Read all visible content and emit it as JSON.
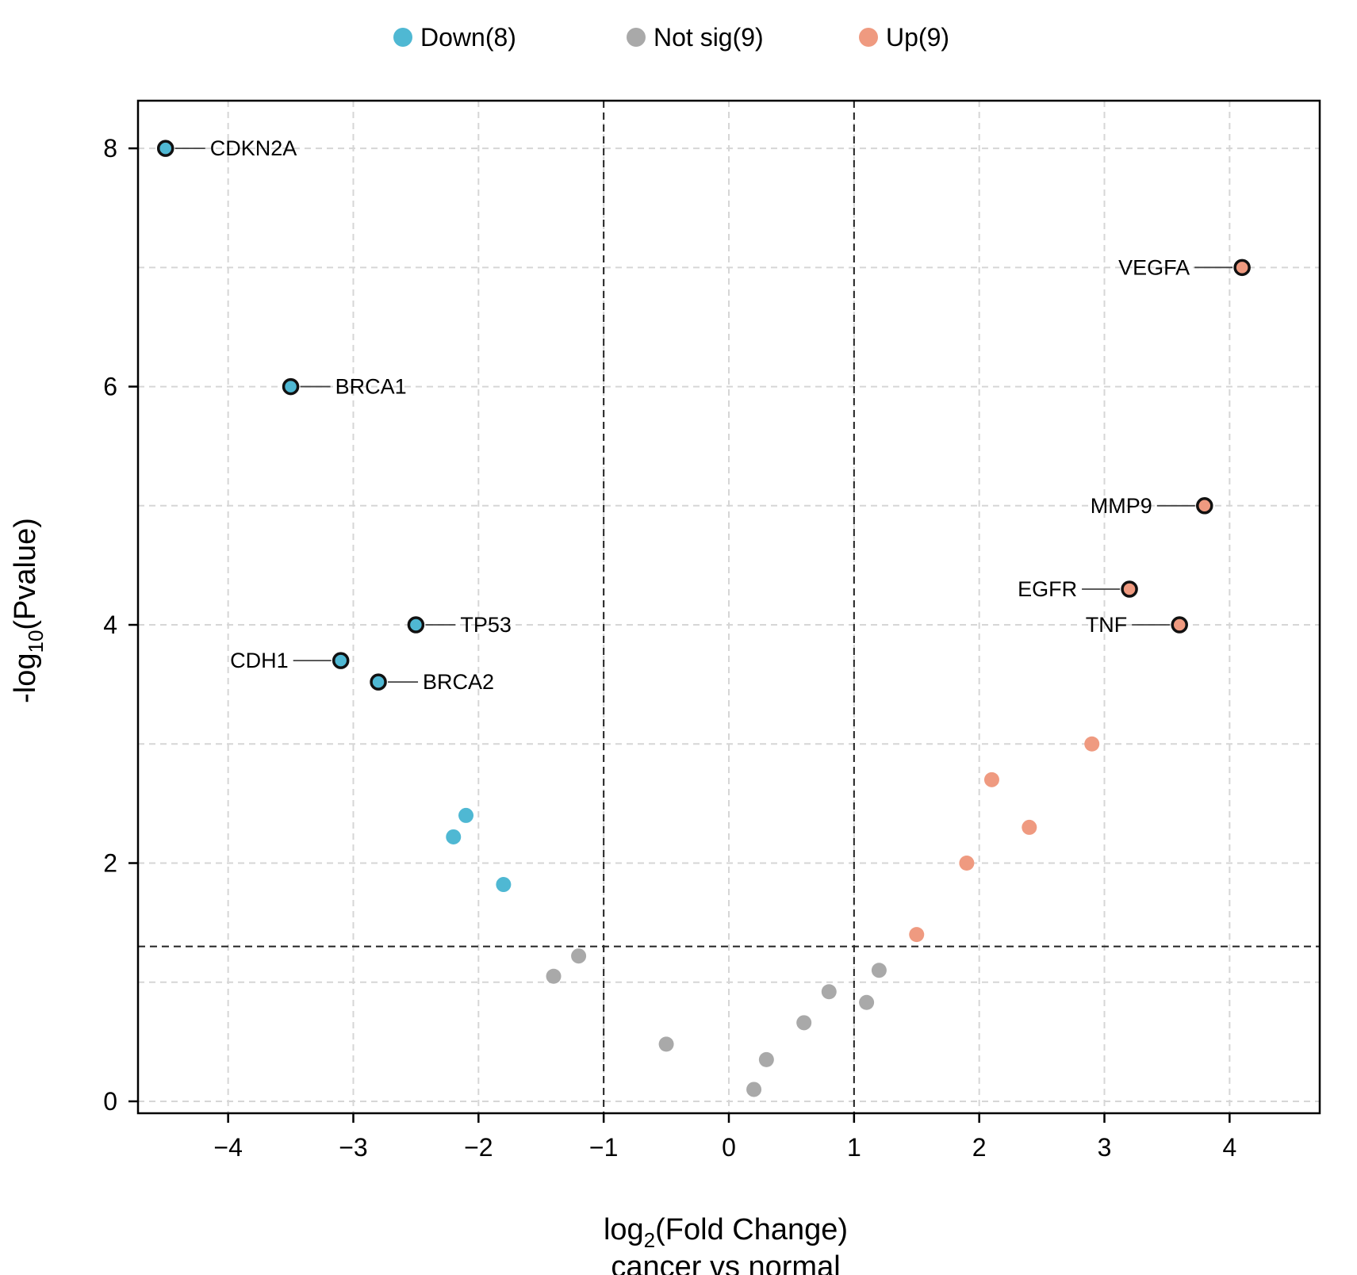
{
  "chart_data": {
    "type": "scatter",
    "title": "",
    "xlabel_main": "log",
    "xlabel_sub": "2",
    "xlabel_rest": "(Fold Change)",
    "xlabel_line2": "cancer vs normal",
    "ylabel_main": "-log",
    "ylabel_sub": "10",
    "ylabel_rest": "(Pvalue)",
    "xlim": [
      -4.72,
      4.72
    ],
    "ylim": [
      -0.1,
      8.4
    ],
    "xticks": [
      -4,
      -3,
      -2,
      -1,
      0,
      1,
      2,
      3,
      4
    ],
    "xtick_labels": [
      "−4",
      "−3",
      "−2",
      "−1",
      "0",
      "1",
      "2",
      "3",
      "4"
    ],
    "yticks": [
      0,
      2,
      4,
      6,
      8
    ],
    "ytick_labels": [
      "0",
      "2",
      "4",
      "6",
      "8"
    ],
    "grid": true,
    "y_gridlines": [
      0,
      1,
      2,
      3,
      4,
      5,
      6,
      7,
      8
    ],
    "thresholds": {
      "fc": [
        -1,
        1
      ],
      "neg_log_p": 1.3
    },
    "legend_position": "top",
    "colors": {
      "Down": "#4fb8d3",
      "Not sig": "#a9a9a9",
      "Up": "#ef9a80",
      "outline": "#111111",
      "threshold_line": "#222222",
      "grid": "#d6d6d6"
    },
    "series": [
      {
        "name": "Down",
        "legend_label": "Down(8)",
        "color": "#4fb8d3",
        "points": [
          {
            "x": -4.5,
            "y": 8.0,
            "label": "CDKN2A",
            "label_side": "right"
          },
          {
            "x": -3.5,
            "y": 6.0,
            "label": "BRCA1",
            "label_side": "right"
          },
          {
            "x": -2.5,
            "y": 4.0,
            "label": "TP53",
            "label_side": "right"
          },
          {
            "x": -3.1,
            "y": 3.7,
            "label": "CDH1",
            "label_side": "left"
          },
          {
            "x": -2.8,
            "y": 3.52,
            "label": "BRCA2",
            "label_side": "right"
          },
          {
            "x": -2.1,
            "y": 2.4
          },
          {
            "x": -2.2,
            "y": 2.22
          },
          {
            "x": -1.8,
            "y": 1.82
          }
        ]
      },
      {
        "name": "Not sig",
        "legend_label": "Not sig(9)",
        "color": "#a9a9a9",
        "points": [
          {
            "x": -1.2,
            "y": 1.22
          },
          {
            "x": -1.4,
            "y": 1.05
          },
          {
            "x": -0.5,
            "y": 0.48
          },
          {
            "x": 0.2,
            "y": 0.1
          },
          {
            "x": 0.3,
            "y": 0.35
          },
          {
            "x": 0.6,
            "y": 0.66
          },
          {
            "x": 0.8,
            "y": 0.92
          },
          {
            "x": 1.1,
            "y": 0.83
          },
          {
            "x": 1.2,
            "y": 1.1
          }
        ]
      },
      {
        "name": "Up",
        "legend_label": "Up(9)",
        "color": "#ef9a80",
        "points": [
          {
            "x": 4.1,
            "y": 7.0,
            "label": "VEGFA",
            "label_side": "left"
          },
          {
            "x": 3.8,
            "y": 5.0,
            "label": "MMP9",
            "label_side": "left"
          },
          {
            "x": 3.2,
            "y": 4.3,
            "label": "EGFR",
            "label_side": "left"
          },
          {
            "x": 3.6,
            "y": 4.0,
            "label": "TNF",
            "label_side": "left"
          },
          {
            "x": 2.9,
            "y": 3.0
          },
          {
            "x": 2.1,
            "y": 2.7
          },
          {
            "x": 2.4,
            "y": 2.3
          },
          {
            "x": 1.9,
            "y": 2.0
          },
          {
            "x": 1.5,
            "y": 1.4
          }
        ]
      }
    ]
  }
}
